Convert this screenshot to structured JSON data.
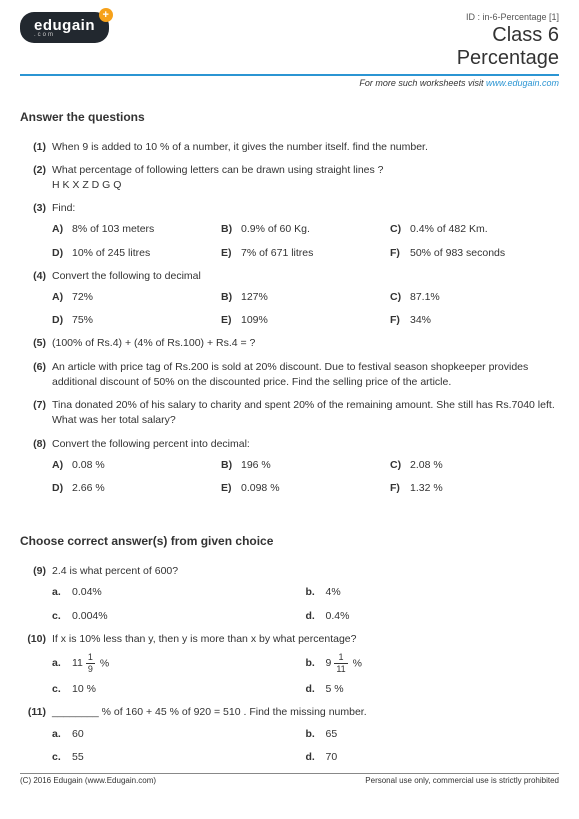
{
  "meta": {
    "id_line": "ID : in-6-Percentage [1]",
    "class_line": "Class 6",
    "topic": "Percentage",
    "tagline_prefix": "For more such worksheets visit ",
    "tagline_link": "www.edugain.com",
    "logo_text": "edugain",
    "logo_sub": ".com",
    "logo_plus": "+"
  },
  "section1_title": "Answer the questions",
  "q1": {
    "num": "(1)",
    "text": "When 9 is added to 10 % of a number, it gives the number itself. find the number."
  },
  "q2": {
    "num": "(2)",
    "line1": "What percentage of following letters can be drawn using straight lines ?",
    "line2": "H K X Z D G Q"
  },
  "q3": {
    "num": "(3)",
    "text": "Find:",
    "parts": {
      "A": "8% of 103 meters",
      "B": "0.9% of 60 Kg.",
      "C": "0.4% of 482 Km.",
      "D": "10% of 245 litres",
      "E": "7% of 671 litres",
      "F": "50% of 983 seconds"
    }
  },
  "q4": {
    "num": "(4)",
    "text": "Convert the following to decimal",
    "parts": {
      "A": "72%",
      "B": "127%",
      "C": "87.1%",
      "D": "75%",
      "E": "109%",
      "F": "34%"
    }
  },
  "q5": {
    "num": "(5)",
    "text": "(100% of Rs.4) + (4% of Rs.100) + Rs.4 = ?"
  },
  "q6": {
    "num": "(6)",
    "text": "An article with price tag of Rs.200 is sold at 20% discount. Due to festival season shopkeeper provides additional discount of 50% on the discounted price. Find the selling price of the article."
  },
  "q7": {
    "num": "(7)",
    "text": "Tina donated 20% of his salary to charity and spent 20% of the remaining amount. She still has Rs.7040 left. What was her total salary?"
  },
  "q8": {
    "num": "(8)",
    "text": "Convert the following percent into decimal:",
    "parts": {
      "A": "0.08 %",
      "B": "196 %",
      "C": "2.08 %",
      "D": "2.66 %",
      "E": "0.098 %",
      "F": "1.32 %"
    }
  },
  "section2_title": "Choose correct answer(s) from given choice",
  "q9": {
    "num": "(9)",
    "text": "2.4 is what percent of 600?",
    "opts": {
      "a": "0.04%",
      "b": "4%",
      "c": "0.004%",
      "d": "0.4%"
    }
  },
  "q10": {
    "num": "(10)",
    "text": "If x is 10% less than y, then y is more than x by what percentage?",
    "opts": {
      "a": {
        "whole": "11",
        "n": "1",
        "d": "9",
        "suffix": " %"
      },
      "b": {
        "whole": "9",
        "n": "1",
        "d": "11",
        "suffix": " %"
      },
      "c": "10 %",
      "d": "5 %"
    }
  },
  "q11": {
    "num": "(11)",
    "text": "________ % of 160 + 45 % of 920 = 510 . Find the missing number.",
    "opts": {
      "a": "60",
      "b": "65",
      "c": "55",
      "d": "70"
    }
  },
  "footer": {
    "left": "(C) 2016 Edugain (www.Edugain.com)",
    "right": "Personal use only, commercial use is strictly prohibited"
  },
  "labels": {
    "A": "A)",
    "B": "B)",
    "C": "C)",
    "D": "D)",
    "E": "E)",
    "F": "F)",
    "a": "a.",
    "b": "b.",
    "c": "c.",
    "d": "d."
  }
}
